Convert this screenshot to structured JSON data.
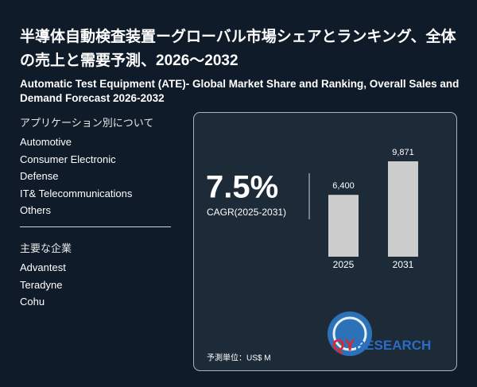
{
  "header": {
    "title": "半導体自動検査装置ーグローバル市場シェアとランキング、全体の売上と需要予測、2026～2032",
    "subtitle": "Automatic Test Equipment (ATE)- Global Market Share and Ranking, Overall Sales and Demand Forecast 2026-2032"
  },
  "applications": {
    "heading": "アプリケーション別について",
    "items": [
      "Automotive",
      "Consumer Electronic",
      "Defense",
      "IT& Telecommunications",
      "Others"
    ]
  },
  "companies": {
    "heading": "主要な企業",
    "items": [
      "Advantest",
      "Teradyne",
      "Cohu"
    ]
  },
  "cagr": {
    "value": "7.5%",
    "label": "CAGR(2025-2031)"
  },
  "chart_data": {
    "type": "bar",
    "categories": [
      "2025",
      "2031"
    ],
    "values": [
      6400,
      9871
    ],
    "value_labels": [
      "6,400",
      "9,871"
    ],
    "color": "#cccccc"
  },
  "unit_note": "予測単位：US$ M",
  "logo": {
    "prefix": "QY",
    "suffix": "RESEARCH"
  }
}
